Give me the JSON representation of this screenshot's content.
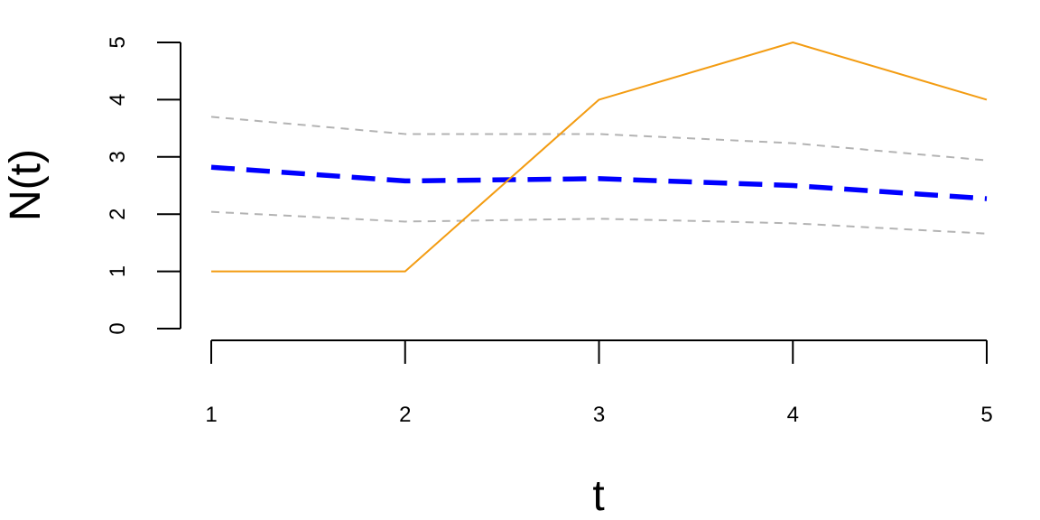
{
  "chart_data": {
    "type": "line",
    "title": "",
    "xlabel": "t",
    "ylabel": "N(t)",
    "x": [
      1,
      2,
      3,
      4,
      5
    ],
    "xticks": [
      "1",
      "2",
      "3",
      "4",
      "5"
    ],
    "yticks": [
      "0",
      "1",
      "2",
      "3",
      "4",
      "5"
    ],
    "xlim": [
      1,
      5
    ],
    "ylim": [
      0,
      5
    ],
    "grid": false,
    "legend": "none",
    "series": [
      {
        "role": "observed",
        "values": [
          1,
          1,
          4,
          5,
          4
        ],
        "color": "#F39C12",
        "style": "solid"
      },
      {
        "role": "mean",
        "values": [
          2.82,
          2.58,
          2.62,
          2.5,
          2.27
        ],
        "color": "#0000FF",
        "style": "dashed-thick"
      },
      {
        "role": "upper-band",
        "values": [
          3.7,
          3.4,
          3.4,
          3.24,
          2.94
        ],
        "color": "#B3B3B3",
        "style": "dashed"
      },
      {
        "role": "lower-band",
        "values": [
          2.04,
          1.87,
          1.92,
          1.84,
          1.66
        ],
        "color": "#B3B3B3",
        "style": "dashed"
      }
    ]
  }
}
